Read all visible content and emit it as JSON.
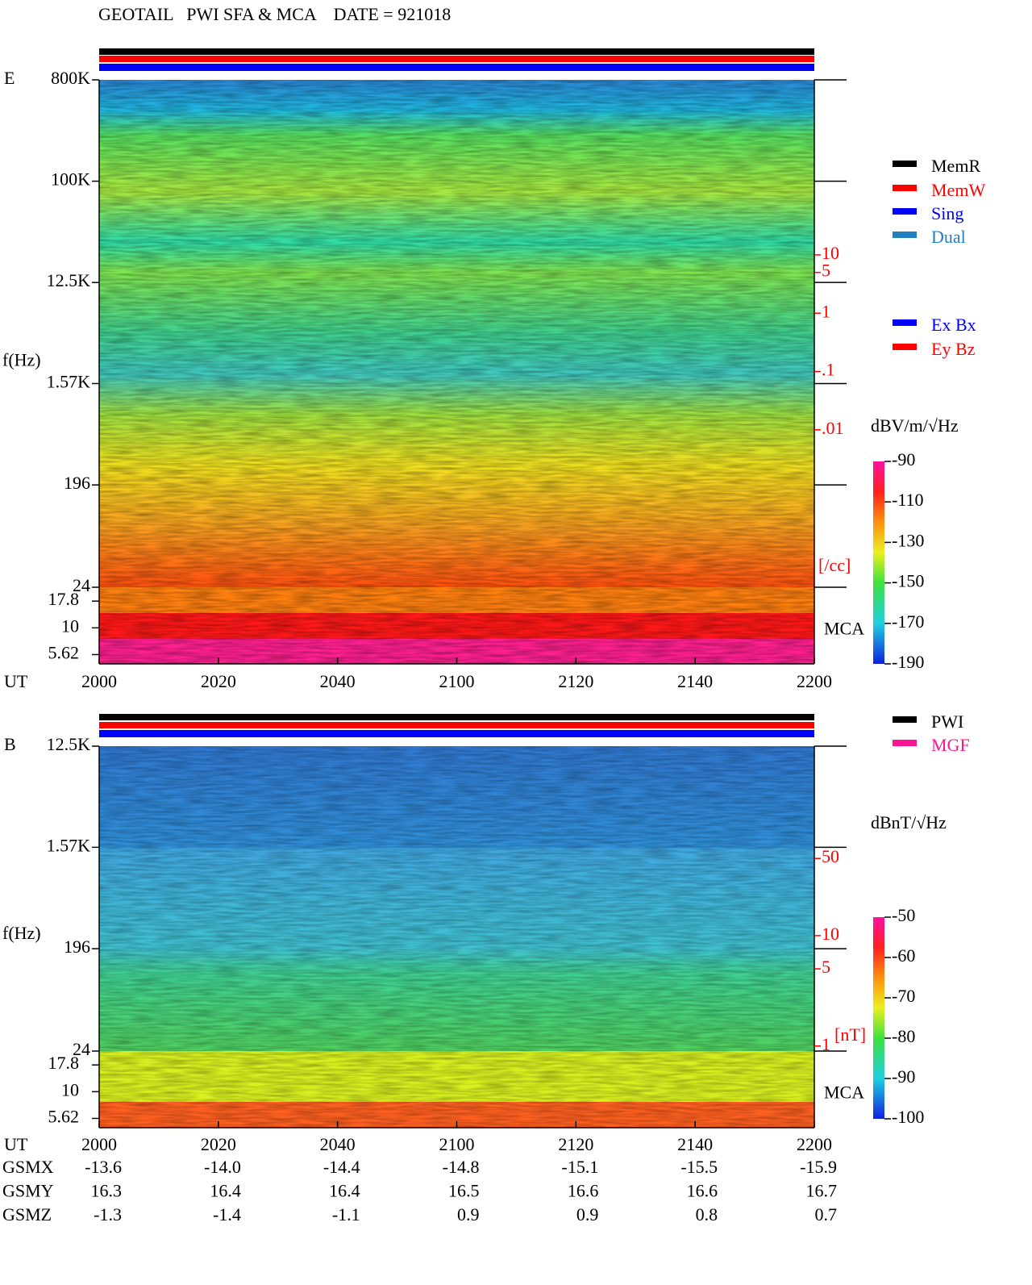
{
  "header": {
    "title": "GEOTAIL   PWI SFA & MCA    DATE = 921018"
  },
  "chart_data": [
    {
      "type": "spectrogram",
      "panel_label": "E",
      "y_label": "f(Hz)",
      "x_label": "UT",
      "log_y": true,
      "ylim": [
        24,
        800000
      ],
      "yticks": [
        {
          "value": 800000,
          "label": "800K"
        },
        {
          "value": 100000,
          "label": "100K"
        },
        {
          "value": 12500,
          "label": "12.5K"
        },
        {
          "value": 1570,
          "label": "1.57K"
        },
        196,
        24
      ],
      "mca_label": "MCA",
      "mca_ylim": [
        4.6,
        24
      ],
      "mca_yticks": [
        17.8,
        10,
        5.62
      ],
      "y2lim": [
        2e-05,
        10000
      ],
      "y2ticks": [
        10,
        5,
        1,
        {
          "value": 0.1,
          "label": ".1"
        },
        {
          "value": 0.01,
          "label": ".01"
        }
      ],
      "y2_unit": "[/cc]",
      "categories": [
        "2000",
        "2020",
        "2040",
        "2100",
        "2120",
        "2140",
        "2200"
      ],
      "colorbar": {
        "label": "dBV/m/√Hz",
        "lim": [
          -190,
          -90
        ],
        "ticks": [
          -90,
          -110,
          -130,
          -150,
          -170,
          -190
        ]
      },
      "legend": [
        {
          "name": "MemR",
          "color": "#000000"
        },
        {
          "name": "MemW",
          "color": "#ff0000"
        },
        {
          "name": "Sing",
          "color": "#0000ff"
        },
        {
          "name": "Dual",
          "color": "#2080c0"
        }
      ],
      "legend2": [
        {
          "name": "Ex Bx",
          "color": "#0000ff"
        },
        {
          "name": "Ey Bz",
          "color": "#ff0000"
        }
      ]
    },
    {
      "type": "spectrogram",
      "panel_label": "B",
      "y_label": "f(Hz)",
      "x_label": "UT",
      "log_y": true,
      "ylim": [
        24,
        12500
      ],
      "yticks": [
        {
          "value": 12500,
          "label": "12.5K"
        },
        {
          "value": 1570,
          "label": "1.57K"
        },
        196,
        24
      ],
      "mca_label": "MCA",
      "mca_ylim": [
        4.6,
        24
      ],
      "mca_yticks": [
        17.8,
        10,
        5.62
      ],
      "y2lim": [
        0.9,
        520
      ],
      "y2ticks": [
        50,
        10,
        5,
        1
      ],
      "y2_unit": "[nT]",
      "categories": [
        "2000",
        "2020",
        "2040",
        "2100",
        "2120",
        "2140",
        "2200"
      ],
      "colorbar": {
        "label": "dBnT/√Hz",
        "lim": [
          -100,
          -50
        ],
        "ticks": [
          -50,
          -60,
          -70,
          -80,
          -90,
          -100
        ]
      },
      "legend": [
        {
          "name": "PWI",
          "color": "#000000"
        },
        {
          "name": "MGF",
          "color": "#ff1493"
        }
      ]
    }
  ],
  "orbit": {
    "rows": [
      {
        "label": "GSMX",
        "values": [
          "-13.6",
          "-14.0",
          "-14.4",
          "-14.8",
          "-15.1",
          "-15.5",
          "-15.9"
        ]
      },
      {
        "label": "GSMY",
        "values": [
          "16.3",
          "16.4",
          "16.4",
          "16.5",
          "16.6",
          "16.6",
          "16.7"
        ]
      },
      {
        "label": "GSMZ",
        "values": [
          "-1.3",
          "-1.4",
          "-1.1",
          "0.9",
          "0.9",
          "0.8",
          "0.7"
        ]
      }
    ]
  }
}
